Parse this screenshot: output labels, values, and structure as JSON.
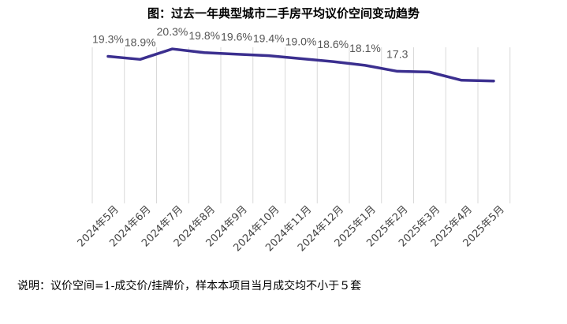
{
  "title": "图：过去一年典型城市二手房平均议价空间变动趋势",
  "note": "说明：议价空间=1-成交价/挂牌价，样本本项目当月成交均不小于５套",
  "chart_data": {
    "type": "line",
    "title": "图：过去一年典型城市二手房平均议价空间变动趋势",
    "categories": [
      "2024年5月",
      "2024年6月",
      "2024年7月",
      "2024年8月",
      "2024年9月",
      "2024年10月",
      "2024年11月",
      "2024年12月",
      "2025年1月",
      "2025年2月",
      "2025年3月",
      "2025年4月",
      "2025年5月"
    ],
    "series": [
      {
        "values": [
          19.3,
          18.9,
          20.3,
          19.8,
          19.6,
          19.4,
          19.0,
          18.6,
          18.1,
          17.3,
          17.2,
          16.1,
          16.0
        ]
      }
    ],
    "data_labels": [
      "19.3%",
      "18.9%",
      "20.3%",
      "19.8%",
      "19.6%",
      "19.4%",
      "19.0%",
      "18.6%",
      "18.1%",
      "17.3",
      "",
      "",
      ""
    ],
    "ylim": [
      0,
      22
    ],
    "colors": {
      "line": "#3b2f8f",
      "grid": "#d9d9d9"
    },
    "grid": true
  }
}
